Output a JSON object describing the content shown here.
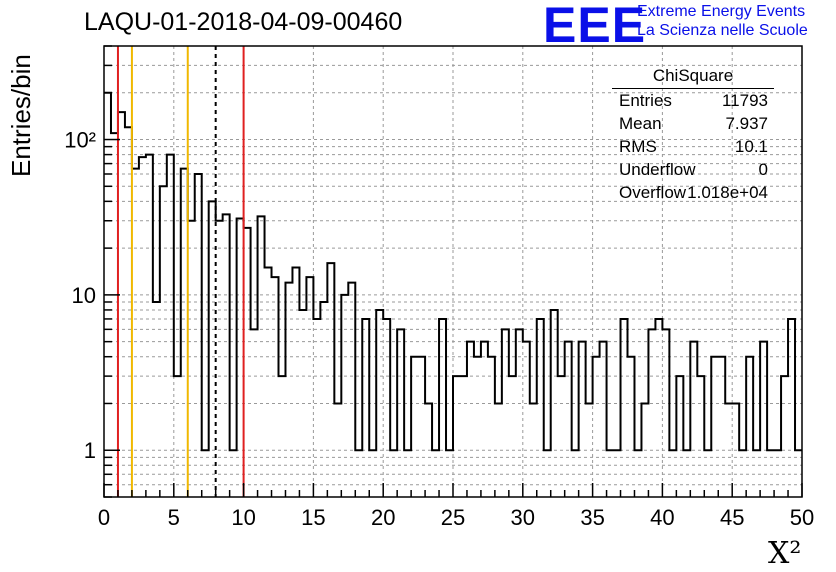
{
  "title": "LAQU-01-2018-04-09-00460",
  "logo": {
    "mark": "EEE",
    "line1": "Extreme Energy Events",
    "line2": "La Scienza nelle Scuole",
    "color": "#0a10e8"
  },
  "stats": {
    "name": "ChiSquare",
    "rows": [
      {
        "key": "Entries",
        "value": "11793"
      },
      {
        "key": "Mean",
        "value": "7.937"
      },
      {
        "key": "RMS",
        "value": "10.1"
      },
      {
        "key": "Underflow",
        "value": "0"
      },
      {
        "key": "Overflow",
        "value": "1.018e+04"
      }
    ]
  },
  "chart_data": {
    "type": "histogram",
    "title": "LAQU-01-2018-04-09-00460",
    "xlabel": "X²",
    "ylabel": "Entries/bin",
    "xlim": [
      0,
      50
    ],
    "ylim": [
      0.5,
      400
    ],
    "yscale": "log",
    "grid": true,
    "bin_width": 0.5,
    "xticks": [
      "0",
      "5",
      "10",
      "15",
      "20",
      "25",
      "30",
      "35",
      "40",
      "45",
      "50"
    ],
    "yticks": [
      {
        "value": 1,
        "label": "1"
      },
      {
        "value": 10,
        "label": "10"
      },
      {
        "value": 100,
        "label": "10²"
      }
    ],
    "values": [
      200,
      110,
      150,
      120,
      65,
      77,
      80,
      9,
      50,
      80,
      3,
      65,
      30,
      60,
      1,
      40,
      30,
      33,
      1,
      31,
      27,
      6,
      32,
      15,
      13,
      3,
      12,
      15,
      8,
      13,
      7,
      9,
      16,
      2,
      10,
      12,
      1,
      7,
      1,
      8,
      7,
      1,
      6,
      1,
      4,
      4,
      2,
      1,
      7,
      1,
      3,
      3,
      5,
      4,
      5,
      4,
      2,
      6,
      3,
      6,
      5,
      2,
      7,
      1,
      8,
      3,
      5,
      1,
      5,
      2,
      4,
      5,
      1,
      1,
      7,
      4,
      1,
      2,
      6,
      7,
      6,
      1,
      3,
      1,
      5,
      3,
      1,
      4,
      4,
      2,
      2,
      1,
      4,
      1,
      5,
      1,
      1,
      3,
      7,
      1
    ],
    "vlines": [
      {
        "x": 1,
        "color": "#e02020",
        "style": "solid"
      },
      {
        "x": 2,
        "color": "#f0b800",
        "style": "solid"
      },
      {
        "x": 6,
        "color": "#f0b800",
        "style": "solid"
      },
      {
        "x": 8,
        "color": "#000000",
        "style": "dashed"
      },
      {
        "x": 10,
        "color": "#e02020",
        "style": "solid"
      }
    ]
  }
}
